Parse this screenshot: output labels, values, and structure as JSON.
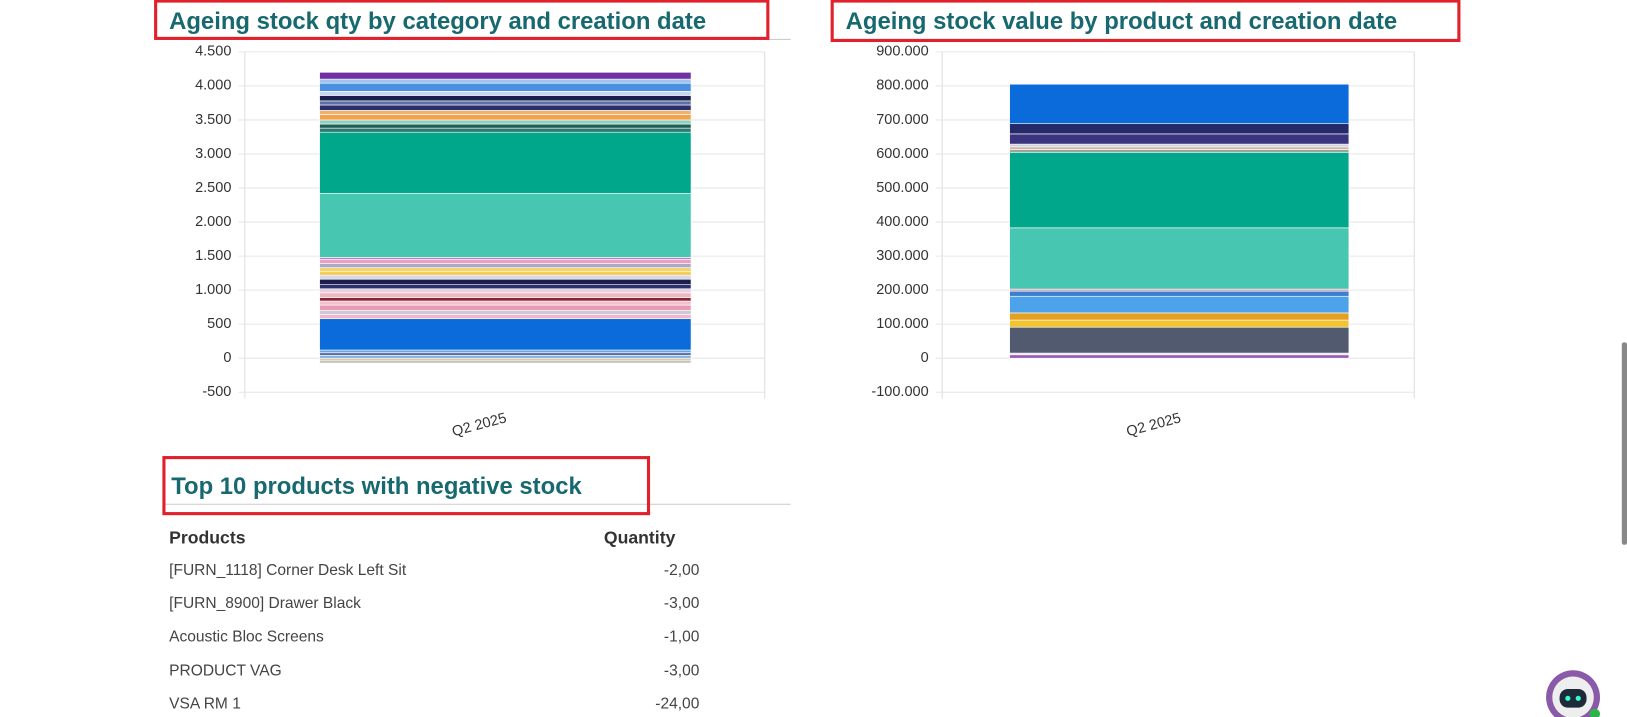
{
  "chart_data": [
    {
      "type": "stacked-bar",
      "title": "Ageing stock qty by category and creation date",
      "categories": [
        "Q2 2025"
      ],
      "ylim": [
        -500,
        4500
      ],
      "yticks": [
        -500,
        0,
        500,
        {
          "value": 1000,
          "label": "1.000"
        },
        {
          "value": 1500,
          "label": "1.500"
        },
        {
          "value": 2000,
          "label": "2.000"
        },
        {
          "value": 2500,
          "label": "2.500"
        },
        {
          "value": 3000,
          "label": "3.000"
        },
        {
          "value": 3500,
          "label": "3.500"
        },
        {
          "value": 4000,
          "label": "4.000"
        },
        {
          "value": 4500,
          "label": "4.500"
        }
      ],
      "grid": true,
      "series": [
        {
          "color": "#d9c9a8",
          "values": [
            -40
          ]
        },
        {
          "color": "#b0b0b0",
          "values": [
            -30
          ]
        },
        {
          "color": "#7fb3e8",
          "values": [
            40
          ]
        },
        {
          "color": "#5a6fa0",
          "values": [
            40
          ]
        },
        {
          "color": "#6aa4e6",
          "values": [
            40
          ]
        },
        {
          "color": "#0b6bdb",
          "values": [
            460
          ]
        },
        {
          "color": "#f3b6c6",
          "values": [
            60
          ]
        },
        {
          "color": "#c9c9d9",
          "values": [
            60
          ]
        },
        {
          "color": "#e89ab0",
          "values": [
            80
          ]
        },
        {
          "color": "#f3c0cf",
          "values": [
            60
          ]
        },
        {
          "color": "#8a2432",
          "values": [
            50
          ]
        },
        {
          "color": "#f2b6bf",
          "values": [
            70
          ]
        },
        {
          "color": "#e8d0e0",
          "values": [
            60
          ]
        },
        {
          "color": "#2b2f6b",
          "values": [
            60
          ]
        },
        {
          "color": "#1b1f4e",
          "values": [
            80
          ]
        },
        {
          "color": "#d7d7e6",
          "values": [
            60
          ]
        },
        {
          "color": "#f3c94d",
          "values": [
            50
          ]
        },
        {
          "color": "#f6d36a",
          "values": [
            60
          ]
        },
        {
          "color": "#a8a8c8",
          "values": [
            60
          ]
        },
        {
          "color": "#e9a0c0",
          "values": [
            60
          ]
        },
        {
          "color": "#c17cc1",
          "values": [
            30
          ]
        },
        {
          "color": "#47c6b1",
          "values": [
            940
          ]
        },
        {
          "color": "#00a78a",
          "values": [
            900
          ]
        },
        {
          "color": "#2e7a6e",
          "values": [
            60
          ]
        },
        {
          "color": "#1d5e55",
          "values": [
            60
          ]
        },
        {
          "color": "#8fd0c0",
          "values": [
            60
          ]
        },
        {
          "color": "#f5a04a",
          "values": [
            80
          ]
        },
        {
          "color": "#f0b070",
          "values": [
            60
          ]
        },
        {
          "color": "#2b2f6b",
          "values": [
            80
          ]
        },
        {
          "color": "#5b6fa8",
          "values": [
            60
          ]
        },
        {
          "color": "#1b1f4e",
          "values": [
            80
          ]
        },
        {
          "color": "#c7d9ef",
          "values": [
            60
          ]
        },
        {
          "color": "#4a8fe0",
          "values": [
            120
          ]
        },
        {
          "color": "#9ec4ef",
          "values": [
            60
          ]
        },
        {
          "color": "#7030a0",
          "values": [
            100
          ]
        }
      ]
    },
    {
      "type": "stacked-bar",
      "title": "Ageing stock value by product and creation date",
      "categories": [
        "Q2 2025"
      ],
      "ylim": [
        -100000,
        900000
      ],
      "yticks": [
        {
          "value": -100000,
          "label": "-100.000"
        },
        0,
        {
          "value": 100000,
          "label": "100.000"
        },
        {
          "value": 200000,
          "label": "200.000"
        },
        {
          "value": 300000,
          "label": "300.000"
        },
        {
          "value": 400000,
          "label": "400.000"
        },
        {
          "value": 500000,
          "label": "500.000"
        },
        {
          "value": 600000,
          "label": "600.000"
        },
        {
          "value": 700000,
          "label": "700.000"
        },
        {
          "value": 800000,
          "label": "800.000"
        },
        {
          "value": 900000,
          "label": "900.000"
        }
      ],
      "grid": true,
      "series": [
        {
          "color": "#9b59b6",
          "values": [
            10000
          ]
        },
        {
          "color": "#e6e0f0",
          "values": [
            5000
          ]
        },
        {
          "color": "#525a70",
          "values": [
            76000
          ]
        },
        {
          "color": "#f4c430",
          "values": [
            21000
          ]
        },
        {
          "color": "#e6a020",
          "values": [
            21000
          ]
        },
        {
          "color": "#4da3ea",
          "values": [
            49000
          ]
        },
        {
          "color": "#3a7fd0",
          "values": [
            15000
          ]
        },
        {
          "color": "#e89ab0",
          "values": [
            6000
          ]
        },
        {
          "color": "#47c6b1",
          "values": [
            180000
          ]
        },
        {
          "color": "#00a78a",
          "values": [
            222000
          ]
        },
        {
          "color": "#a0a0a0",
          "values": [
            8000
          ]
        },
        {
          "color": "#c9b99a",
          "values": [
            8000
          ]
        },
        {
          "color": "#d0d0e0",
          "values": [
            8000
          ]
        },
        {
          "color": "#3b3580",
          "values": [
            30000
          ]
        },
        {
          "color": "#252a6b",
          "values": [
            30000
          ]
        },
        {
          "color": "#0b6bdb",
          "values": [
            116000
          ]
        }
      ]
    }
  ],
  "table": {
    "title": "Top 10 products with negative stock",
    "columns": [
      "Products",
      "Quantity"
    ],
    "rows": [
      [
        "[FURN_1118] Corner Desk Left Sit",
        "-2,00"
      ],
      [
        "[FURN_8900] Drawer Black",
        "-3,00"
      ],
      [
        "Acoustic Bloc Screens",
        "-1,00"
      ],
      [
        "PRODUCT VAG",
        "-3,00"
      ],
      [
        "VSA RM 1",
        "-24,00"
      ]
    ]
  }
}
